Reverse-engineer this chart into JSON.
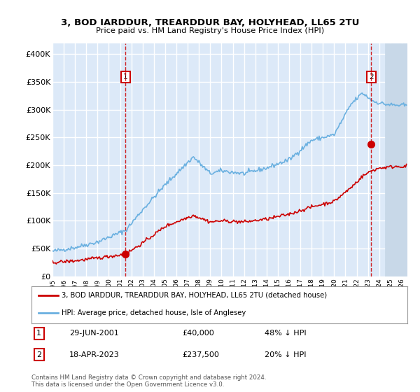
{
  "title": "3, BOD IARDDUR, TREARDDUR BAY, HOLYHEAD, LL65 2TU",
  "subtitle": "Price paid vs. HM Land Registry's House Price Index (HPI)",
  "ylim": [
    0,
    420000
  ],
  "yticks": [
    0,
    50000,
    100000,
    150000,
    200000,
    250000,
    300000,
    350000,
    400000
  ],
  "ytick_labels": [
    "£0",
    "£50K",
    "£100K",
    "£150K",
    "£200K",
    "£250K",
    "£300K",
    "£350K",
    "£400K"
  ],
  "xlim_start": 1995.0,
  "xlim_end": 2026.5,
  "xticks": [
    1995,
    1996,
    1997,
    1998,
    1999,
    2000,
    2001,
    2002,
    2003,
    2004,
    2005,
    2006,
    2007,
    2008,
    2009,
    2010,
    2011,
    2012,
    2013,
    2014,
    2015,
    2016,
    2017,
    2018,
    2019,
    2020,
    2021,
    2022,
    2023,
    2024,
    2025,
    2026
  ],
  "bg_color": "#dce9f8",
  "grid_color": "white",
  "transaction1_date": 2001.49,
  "transaction1_price": 40000,
  "transaction2_date": 2023.29,
  "transaction2_price": 237500,
  "legend_line1": "3, BOD IARDDUR, TREARDDUR BAY, HOLYHEAD, LL65 2TU (detached house)",
  "legend_line2": "HPI: Average price, detached house, Isle of Anglesey",
  "annotation1_date": "29-JUN-2001",
  "annotation1_price": "£40,000",
  "annotation1_hpi": "48% ↓ HPI",
  "annotation2_date": "18-APR-2023",
  "annotation2_price": "£237,500",
  "annotation2_hpi": "20% ↓ HPI",
  "footer": "Contains HM Land Registry data © Crown copyright and database right 2024.\nThis data is licensed under the Open Government Licence v3.0.",
  "hpi_color": "#6ab0e0",
  "price_color": "#cc0000",
  "hpi_key_x": [
    1995.0,
    1997.0,
    1999.0,
    2001.5,
    2003.0,
    2005.0,
    2007.5,
    2009.0,
    2010.0,
    2012.0,
    2014.0,
    2016.0,
    2018.0,
    2020.0,
    2021.5,
    2022.5,
    2023.5,
    2024.5,
    2025.5
  ],
  "hpi_key_y": [
    45000,
    52000,
    62000,
    83000,
    120000,
    165000,
    215000,
    185000,
    190000,
    185000,
    195000,
    210000,
    245000,
    255000,
    310000,
    330000,
    315000,
    310000,
    308000
  ],
  "red_key_x": [
    1995.0,
    1997.0,
    1999.0,
    2001.49,
    2003.0,
    2005.0,
    2007.5,
    2009.0,
    2010.0,
    2012.0,
    2014.0,
    2016.0,
    2018.0,
    2020.0,
    2021.5,
    2022.5,
    2023.29,
    2024.0,
    2025.5
  ],
  "red_key_y": [
    25000,
    28000,
    33000,
    40000,
    60000,
    90000,
    110000,
    98000,
    100000,
    98000,
    103000,
    112000,
    125000,
    135000,
    160000,
    180000,
    190000,
    195000,
    198000
  ],
  "hatch_start": 2024.5
}
